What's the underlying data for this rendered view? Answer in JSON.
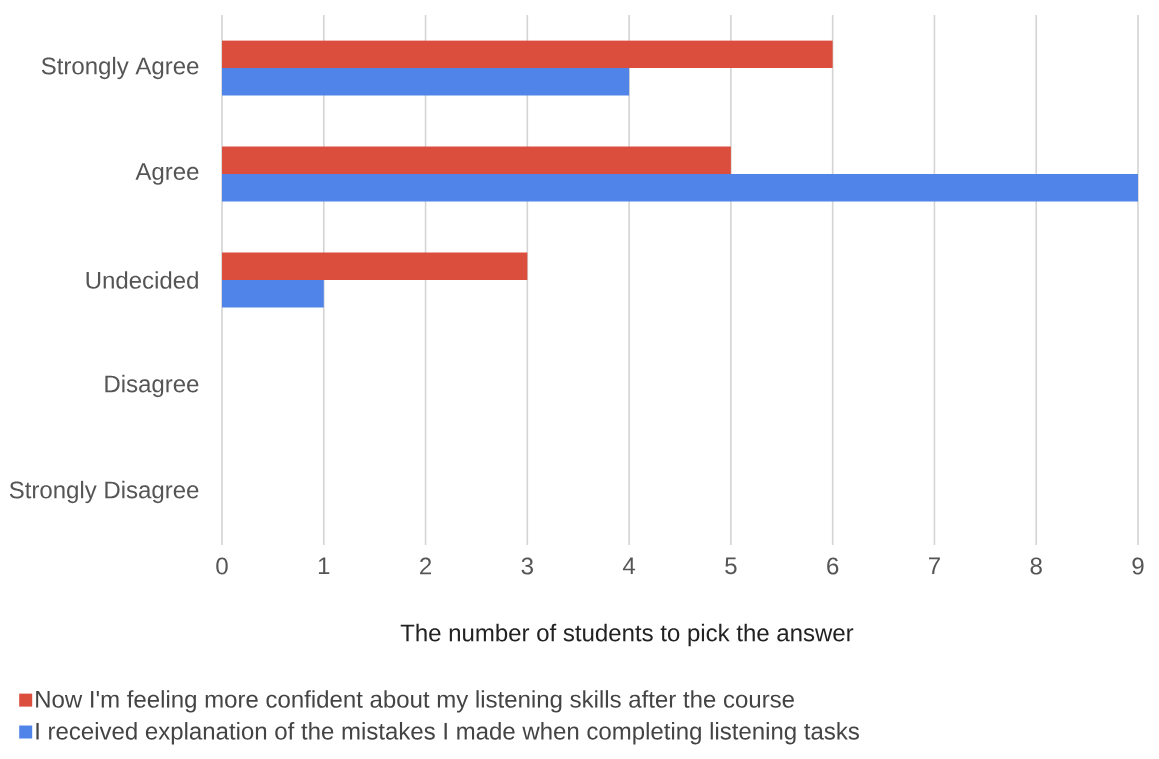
{
  "chart_data": {
    "type": "bar",
    "orientation": "horizontal",
    "xlabel": "The number of students to pick the answer",
    "categories": [
      "Strongly Agree",
      "Agree",
      "Undecided",
      "Disagree",
      "Strongly Disagree"
    ],
    "series": [
      {
        "name": "Now I'm feeling more confident about my listening skills after the course",
        "color": "#db4e3d",
        "values": [
          6,
          5,
          3,
          0,
          0
        ]
      },
      {
        "name": "I received explanation of the mistakes I made when completing listening tasks",
        "color": "#5084e9",
        "values": [
          4,
          9,
          1,
          0,
          0
        ]
      }
    ],
    "xlim": [
      0,
      9
    ],
    "xticks": [
      0,
      1,
      2,
      3,
      4,
      5,
      6,
      7,
      8,
      9
    ],
    "grid": "x",
    "legend": "bottom left"
  }
}
